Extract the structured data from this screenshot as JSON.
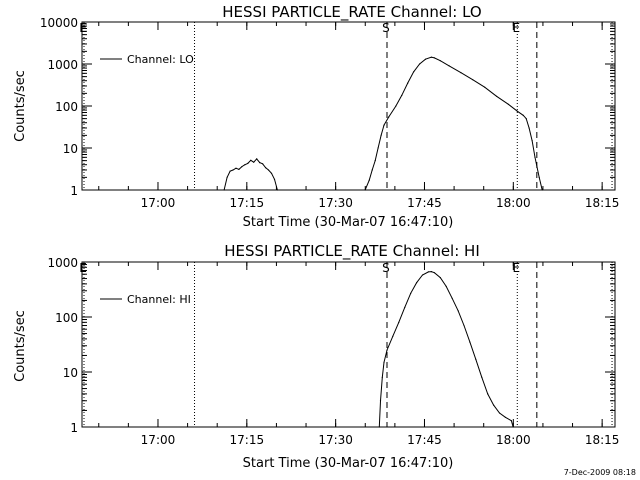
{
  "timestamp": "7-Dec-2009 08:18",
  "chart_data": [
    {
      "type": "line",
      "title": "HESSI PARTICLE_RATE Channel: LO",
      "xlabel": "Start Time (30-Mar-07 16:47:10)",
      "ylabel": "Counts/sec",
      "x_unit": "minutes since start time",
      "xlim": [
        0,
        90
      ],
      "ylim": [
        1,
        10000
      ],
      "y_scale": "log",
      "x_ticks": [
        {
          "value": 12.83,
          "label": "17:00"
        },
        {
          "value": 27.83,
          "label": "17:15"
        },
        {
          "value": 42.83,
          "label": "17:30"
        },
        {
          "value": 57.83,
          "label": "17:45"
        },
        {
          "value": 72.83,
          "label": "18:00"
        },
        {
          "value": 87.83,
          "label": "18:15"
        }
      ],
      "y_ticks": [
        {
          "value": 1,
          "label": "1"
        },
        {
          "value": 10,
          "label": "10"
        },
        {
          "value": 100,
          "label": "100"
        },
        {
          "value": 1000,
          "label": "1000"
        },
        {
          "value": 10000,
          "label": "10000"
        }
      ],
      "legend": {
        "position": "top-left",
        "entries": [
          "Channel: LO"
        ]
      },
      "markers": [
        {
          "style": "dotted",
          "x": 0,
          "label": "E"
        },
        {
          "style": "dotted",
          "x": 19,
          "label": ""
        },
        {
          "style": "dashed",
          "x": 51.5,
          "label": "S"
        },
        {
          "style": "dotted",
          "x": 73.5,
          "label": "E"
        },
        {
          "style": "dashed",
          "x": 76.8,
          "label": ""
        },
        {
          "style": "dotted",
          "x": 89.5,
          "label": ""
        }
      ],
      "series": [
        {
          "name": "Channel: LO",
          "segments": [
            [
              [
                24.0,
                1
              ],
              [
                24.5,
                2.0
              ],
              [
                25.0,
                2.8
              ],
              [
                25.5,
                3.0
              ],
              [
                26.0,
                3.3
              ],
              [
                26.5,
                3.1
              ],
              [
                27.0,
                3.6
              ],
              [
                27.5,
                4.0
              ],
              [
                28.0,
                4.3
              ],
              [
                28.5,
                5.1
              ],
              [
                29.0,
                4.6
              ],
              [
                29.5,
                5.5
              ],
              [
                30.0,
                4.5
              ],
              [
                30.5,
                4.2
              ],
              [
                31.0,
                3.4
              ],
              [
                31.5,
                3.0
              ],
              [
                32.0,
                2.5
              ],
              [
                32.5,
                1.8
              ],
              [
                33.0,
                1
              ]
            ],
            [
              [
                47.8,
                1
              ],
              [
                48.5,
                1.7
              ],
              [
                49.0,
                3
              ],
              [
                49.5,
                5
              ],
              [
                50.0,
                10
              ],
              [
                50.5,
                20
              ],
              [
                51.0,
                35
              ],
              [
                51.8,
                55
              ],
              [
                53.0,
                100
              ],
              [
                54.0,
                180
              ],
              [
                55.0,
                350
              ],
              [
                56.0,
                650
              ],
              [
                57.0,
                1000
              ],
              [
                58.0,
                1300
              ],
              [
                59.0,
                1450
              ],
              [
                59.5,
                1400
              ],
              [
                60.5,
                1200
              ],
              [
                62.0,
                900
              ],
              [
                64.0,
                620
              ],
              [
                66.0,
                420
              ],
              [
                68.0,
                280
              ],
              [
                70.0,
                170
              ],
              [
                72.0,
                110
              ],
              [
                73.5,
                75
              ],
              [
                74.5,
                60
              ],
              [
                75.0,
                50
              ],
              [
                75.5,
                30
              ],
              [
                76.0,
                15
              ],
              [
                76.5,
                6
              ],
              [
                77.2,
                2
              ],
              [
                77.7,
                1
              ]
            ]
          ]
        }
      ]
    },
    {
      "type": "line",
      "title": "HESSI PARTICLE_RATE Channel: HI",
      "xlabel": "Start Time (30-Mar-07 16:47:10)",
      "ylabel": "Counts/sec",
      "x_unit": "minutes since start time",
      "xlim": [
        0,
        90
      ],
      "ylim": [
        1,
        1000
      ],
      "y_scale": "log",
      "x_ticks": [
        {
          "value": 12.83,
          "label": "17:00"
        },
        {
          "value": 27.83,
          "label": "17:15"
        },
        {
          "value": 42.83,
          "label": "17:30"
        },
        {
          "value": 57.83,
          "label": "17:45"
        },
        {
          "value": 72.83,
          "label": "18:00"
        },
        {
          "value": 87.83,
          "label": "18:15"
        }
      ],
      "y_ticks": [
        {
          "value": 1,
          "label": "1"
        },
        {
          "value": 10,
          "label": "10"
        },
        {
          "value": 100,
          "label": "100"
        },
        {
          "value": 1000,
          "label": "1000"
        }
      ],
      "legend": {
        "position": "top-left",
        "entries": [
          "Channel: HI"
        ]
      },
      "markers": [
        {
          "style": "dotted",
          "x": 0,
          "label": "E"
        },
        {
          "style": "dotted",
          "x": 19,
          "label": ""
        },
        {
          "style": "dashed",
          "x": 51.5,
          "label": "S"
        },
        {
          "style": "dotted",
          "x": 73.5,
          "label": "E"
        },
        {
          "style": "dashed",
          "x": 76.8,
          "label": ""
        },
        {
          "style": "dotted",
          "x": 89.5,
          "label": ""
        }
      ],
      "series": [
        {
          "name": "Channel: HI",
          "segments": [
            [
              [
                50.2,
                1
              ],
              [
                50.4,
                3
              ],
              [
                50.7,
                8
              ],
              [
                51.0,
                15
              ],
              [
                51.5,
                25
              ],
              [
                52.5,
                45
              ],
              [
                53.5,
                80
              ],
              [
                54.5,
                150
              ],
              [
                55.5,
                270
              ],
              [
                56.5,
                420
              ],
              [
                57.5,
                580
              ],
              [
                58.5,
                660
              ],
              [
                59.0,
                670
              ],
              [
                59.5,
                640
              ],
              [
                60.5,
                520
              ],
              [
                61.5,
                360
              ],
              [
                62.5,
                220
              ],
              [
                63.5,
                130
              ],
              [
                64.5,
                70
              ],
              [
                65.5,
                35
              ],
              [
                66.5,
                17
              ],
              [
                67.5,
                8
              ],
              [
                68.5,
                4
              ],
              [
                69.5,
                2.5
              ],
              [
                70.5,
                1.8
              ],
              [
                71.5,
                1.5
              ],
              [
                72.5,
                1.3
              ],
              [
                72.8,
                1
              ]
            ]
          ]
        }
      ]
    }
  ]
}
